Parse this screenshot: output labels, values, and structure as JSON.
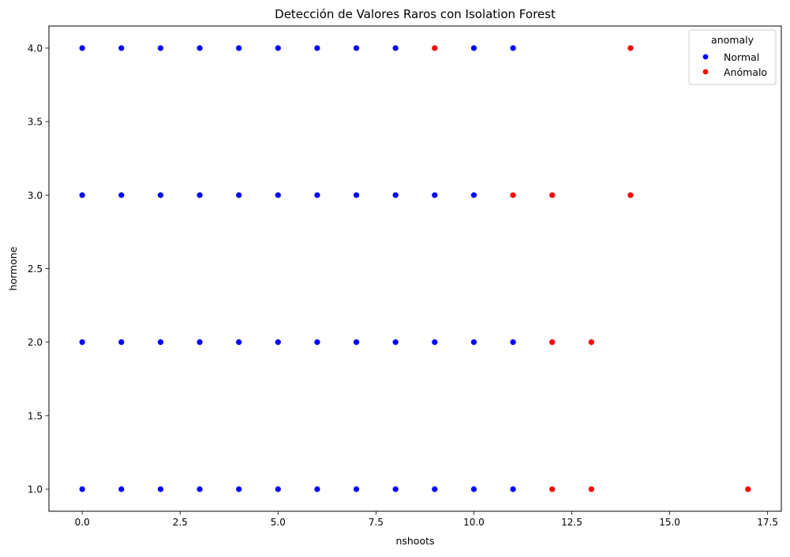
{
  "chart_data": {
    "type": "scatter",
    "title": "Detección de Valores Raros con Isolation Forest",
    "xlabel": "nshoots",
    "ylabel": "hormone",
    "xlim": [
      -0.85,
      17.85
    ],
    "ylim": [
      0.85,
      4.15
    ],
    "xticks": [
      0.0,
      2.5,
      5.0,
      7.5,
      10.0,
      12.5,
      15.0,
      17.5
    ],
    "xtick_labels": [
      "0.0",
      "2.5",
      "5.0",
      "7.5",
      "10.0",
      "12.5",
      "15.0",
      "17.5"
    ],
    "yticks": [
      1.0,
      1.5,
      2.0,
      2.5,
      3.0,
      3.5,
      4.0
    ],
    "ytick_labels": [
      "1.0",
      "1.5",
      "2.0",
      "2.5",
      "3.0",
      "3.5",
      "4.0"
    ],
    "grid": false,
    "legend": {
      "title": "anomaly",
      "placement": "top-right"
    },
    "series": [
      {
        "name": "Normal",
        "color": "#0000ff",
        "points": [
          [
            0,
            4
          ],
          [
            1,
            4
          ],
          [
            2,
            4
          ],
          [
            3,
            4
          ],
          [
            4,
            4
          ],
          [
            5,
            4
          ],
          [
            6,
            4
          ],
          [
            7,
            4
          ],
          [
            8,
            4
          ],
          [
            10,
            4
          ],
          [
            11,
            4
          ],
          [
            0,
            3
          ],
          [
            1,
            3
          ],
          [
            2,
            3
          ],
          [
            3,
            3
          ],
          [
            4,
            3
          ],
          [
            5,
            3
          ],
          [
            6,
            3
          ],
          [
            7,
            3
          ],
          [
            8,
            3
          ],
          [
            9,
            3
          ],
          [
            10,
            3
          ],
          [
            0,
            2
          ],
          [
            1,
            2
          ],
          [
            2,
            2
          ],
          [
            3,
            2
          ],
          [
            4,
            2
          ],
          [
            5,
            2
          ],
          [
            6,
            2
          ],
          [
            7,
            2
          ],
          [
            8,
            2
          ],
          [
            9,
            2
          ],
          [
            10,
            2
          ],
          [
            11,
            2
          ],
          [
            0,
            1
          ],
          [
            1,
            1
          ],
          [
            2,
            1
          ],
          [
            3,
            1
          ],
          [
            4,
            1
          ],
          [
            5,
            1
          ],
          [
            6,
            1
          ],
          [
            7,
            1
          ],
          [
            8,
            1
          ],
          [
            9,
            1
          ],
          [
            10,
            1
          ],
          [
            11,
            1
          ]
        ]
      },
      {
        "name": "Anómalo",
        "color": "#ff0000",
        "points": [
          [
            9,
            4
          ],
          [
            14,
            4
          ],
          [
            11,
            3
          ],
          [
            12,
            3
          ],
          [
            14,
            3
          ],
          [
            12,
            2
          ],
          [
            13,
            2
          ],
          [
            12,
            1
          ],
          [
            13,
            1
          ],
          [
            17,
            1
          ]
        ]
      }
    ]
  }
}
